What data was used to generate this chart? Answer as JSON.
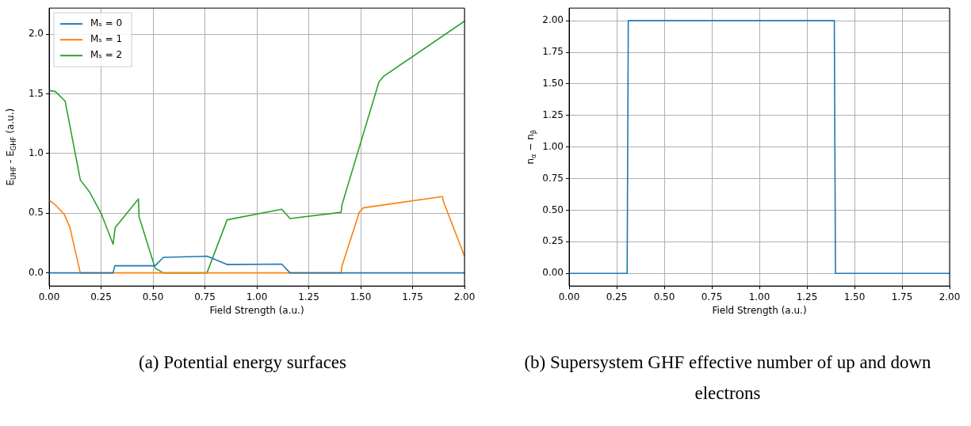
{
  "chart_data": [
    {
      "type": "line",
      "title": "(a) Potential energy surfaces",
      "xlabel": "Field Strength (a.u.)",
      "ylabel": "E$_{UHF}$ - E$_{GHF}$ (a.u.)",
      "xlim": [
        0,
        2
      ],
      "ylim": [
        -0.11,
        2.22
      ],
      "xticks": [
        {
          "value": 0,
          "label": "0.00"
        },
        {
          "value": 0.25,
          "label": "0.25"
        },
        {
          "value": 0.5,
          "label": "0.50"
        },
        {
          "value": 0.75,
          "label": "0.75"
        },
        {
          "value": 1,
          "label": "1.00"
        },
        {
          "value": 1.25,
          "label": "1.25"
        },
        {
          "value": 1.5,
          "label": "1.50"
        },
        {
          "value": 1.75,
          "label": "1.75"
        },
        {
          "value": 2,
          "label": "2.00"
        }
      ],
      "yticks": [
        {
          "value": 0,
          "label": "0.0"
        },
        {
          "value": 0.5,
          "label": "0.5"
        },
        {
          "value": 1,
          "label": "1.0"
        },
        {
          "value": 1.5,
          "label": "1.5"
        },
        {
          "value": 2,
          "label": "2.0"
        }
      ],
      "grid": true,
      "legend": "top left",
      "marker": "none",
      "line_style": "solid",
      "series": [
        {
          "name": "Mₛ = 0",
          "color": "#1f77b4",
          "x": [
            0,
            0.308,
            0.316,
            0.51,
            0.55,
            0.76,
            0.857,
            1.12,
            1.16,
            2.0
          ],
          "values": [
            0,
            0,
            0.06,
            0.06,
            0.13,
            0.14,
            0.07,
            0.074,
            0,
            0
          ]
        },
        {
          "name": "Mₛ = 1",
          "color": "#ff7f0e",
          "x": [
            0,
            0.03,
            0.073,
            0.1,
            0.15,
            1.406,
            1.41,
            1.494,
            1.514,
            1.894,
            1.898,
            2.0
          ],
          "values": [
            0.61,
            0.57,
            0.49,
            0.38,
            0,
            0,
            0.057,
            0.51,
            0.546,
            0.64,
            0.6,
            0.14
          ]
        },
        {
          "name": "Mₛ = 2",
          "color": "#2ca02c",
          "x": [
            0,
            0.03,
            0.077,
            0.15,
            0.194,
            0.25,
            0.308,
            0.318,
            0.43,
            0.433,
            0.51,
            0.55,
            0.76,
            0.857,
            1.12,
            1.16,
            1.406,
            1.41,
            1.588,
            1.612,
            2.0
          ],
          "values": [
            1.53,
            1.52,
            1.44,
            0.78,
            0.68,
            0.5,
            0.24,
            0.38,
            0.62,
            0.47,
            0.04,
            0,
            0,
            0.445,
            0.534,
            0.456,
            0.508,
            0.57,
            1.6,
            1.65,
            2.11
          ]
        }
      ]
    },
    {
      "type": "line",
      "title": "(b) Supersystem GHF effective number of up and down electrons",
      "xlabel": "Field Strength (a.u.)",
      "ylabel": "n$_{α}$ − n$_{β}$",
      "xlim": [
        0,
        2
      ],
      "ylim": [
        -0.1,
        2.1
      ],
      "xticks": [
        {
          "value": 0,
          "label": "0.00"
        },
        {
          "value": 0.25,
          "label": "0.25"
        },
        {
          "value": 0.5,
          "label": "0.50"
        },
        {
          "value": 0.75,
          "label": "0.75"
        },
        {
          "value": 1,
          "label": "1.00"
        },
        {
          "value": 1.25,
          "label": "1.25"
        },
        {
          "value": 1.5,
          "label": "1.50"
        },
        {
          "value": 1.75,
          "label": "1.75"
        },
        {
          "value": 2,
          "label": "2.00"
        }
      ],
      "yticks": [
        {
          "value": 0,
          "label": "0.00"
        },
        {
          "value": 0.25,
          "label": "0.25"
        },
        {
          "value": 0.5,
          "label": "0.50"
        },
        {
          "value": 0.75,
          "label": "0.75"
        },
        {
          "value": 1,
          "label": "1.00"
        },
        {
          "value": 1.25,
          "label": "1.25"
        },
        {
          "value": 1.5,
          "label": "1.50"
        },
        {
          "value": 1.75,
          "label": "1.75"
        },
        {
          "value": 2,
          "label": "2.00"
        }
      ],
      "grid": true,
      "marker": "none",
      "line_style": "solid",
      "series": [
        {
          "color": "#1f77b4",
          "x": [
            0,
            0.305,
            0.311,
            1.394,
            1.4,
            2.0
          ],
          "values": [
            0,
            0,
            2,
            2,
            0,
            0
          ]
        }
      ]
    }
  ]
}
